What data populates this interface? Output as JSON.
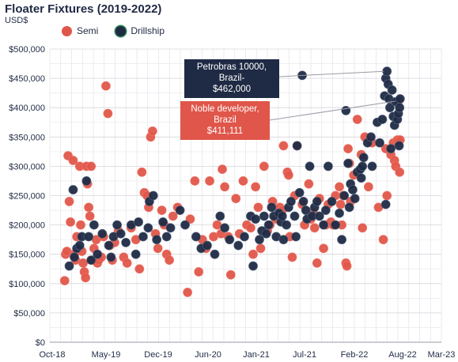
{
  "chart_data": {
    "type": "scatter",
    "title": "Floater Fixtures (2019-2022)",
    "subtitle": "USD$",
    "xlabel": "",
    "ylabel": "",
    "x_ticks": [
      "Oct-18",
      "May-19",
      "Dec-19",
      "Jun-20",
      "Jan-21",
      "Jul-21",
      "Feb-22",
      "Aug-22",
      "Mar-23"
    ],
    "x_range": [
      "2018-10",
      "2023-03"
    ],
    "y_ticks": [
      "$0",
      "$50,000",
      "$100,000",
      "$150,000",
      "$200,000",
      "$250,000",
      "$300,000",
      "$350,000",
      "$400,000",
      "$450,000",
      "$500,000"
    ],
    "ylim": [
      0,
      500000
    ],
    "grid": true,
    "legend_position": "top-left",
    "series": [
      {
        "name": "Semi",
        "color": "#e0564a",
        "points": [
          [
            "2018-12-01",
            105000
          ],
          [
            "2018-12-05",
            150000
          ],
          [
            "2018-12-10",
            155000
          ],
          [
            "2018-12-15",
            318000
          ],
          [
            "2018-12-20",
            240000
          ],
          [
            "2018-12-25",
            205000
          ],
          [
            "2019-01-05",
            310000
          ],
          [
            "2019-01-10",
            150000
          ],
          [
            "2019-01-15",
            140000
          ],
          [
            "2019-01-20",
            180000
          ],
          [
            "2019-02-01",
            300000
          ],
          [
            "2019-02-05",
            200000
          ],
          [
            "2019-02-10",
            155000
          ],
          [
            "2019-02-15",
            135000
          ],
          [
            "2019-02-20",
            120000
          ],
          [
            "2019-02-25",
            110000
          ],
          [
            "2019-03-01",
            300000
          ],
          [
            "2019-03-05",
            270000
          ],
          [
            "2019-03-10",
            230000
          ],
          [
            "2019-03-15",
            215000
          ],
          [
            "2019-03-20",
            300000
          ],
          [
            "2019-03-25",
            140000
          ],
          [
            "2019-04-01",
            160000
          ],
          [
            "2019-04-10",
            175000
          ],
          [
            "2019-04-15",
            135000
          ],
          [
            "2019-04-20",
            140000
          ],
          [
            "2019-05-01",
            145000
          ],
          [
            "2019-05-10",
            180000
          ],
          [
            "2019-05-20",
            437000
          ],
          [
            "2019-05-28",
            390000
          ],
          [
            "2019-06-05",
            165000
          ],
          [
            "2019-06-15",
            140000
          ],
          [
            "2019-06-25",
            170000
          ],
          [
            "2019-07-10",
            190000
          ],
          [
            "2019-08-01",
            145000
          ],
          [
            "2019-08-15",
            135000
          ],
          [
            "2019-09-01",
            195000
          ],
          [
            "2019-09-20",
            175000
          ],
          [
            "2019-10-05",
            125000
          ],
          [
            "2019-10-15",
            290000
          ],
          [
            "2019-10-25",
            255000
          ],
          [
            "2019-11-05",
            250000
          ],
          [
            "2019-11-12",
            230000
          ],
          [
            "2019-11-20",
            350000
          ],
          [
            "2019-11-28",
            360000
          ],
          [
            "2019-12-10",
            185000
          ],
          [
            "2019-12-20",
            160000
          ],
          [
            "2020-01-05",
            225000
          ],
          [
            "2020-01-15",
            200000
          ],
          [
            "2020-01-25",
            150000
          ],
          [
            "2020-02-05",
            140000
          ],
          [
            "2020-02-20",
            215000
          ],
          [
            "2020-03-10",
            230000
          ],
          [
            "2020-04-20",
            85000
          ],
          [
            "2020-05-01",
            210000
          ],
          [
            "2020-05-20",
            275000
          ],
          [
            "2020-06-05",
            120000
          ],
          [
            "2020-06-20",
            175000
          ],
          [
            "2020-07-05",
            160000
          ],
          [
            "2020-07-20",
            275000
          ],
          [
            "2020-08-05",
            180000
          ],
          [
            "2020-08-20",
            200000
          ],
          [
            "2020-09-05",
            185000
          ],
          [
            "2020-09-10",
            295000
          ],
          [
            "2020-09-20",
            265000
          ],
          [
            "2020-10-05",
            180000
          ],
          [
            "2020-10-15",
            115000
          ],
          [
            "2020-11-05",
            245000
          ],
          [
            "2020-11-20",
            185000
          ],
          [
            "2020-12-05",
            275000
          ],
          [
            "2020-12-20",
            200000
          ],
          [
            "2021-01-05",
            195000
          ],
          [
            "2021-01-15",
            150000
          ],
          [
            "2021-01-25",
            265000
          ],
          [
            "2021-02-05",
            230000
          ],
          [
            "2021-02-15",
            160000
          ],
          [
            "2021-03-01",
            300000
          ],
          [
            "2021-03-15",
            190000
          ],
          [
            "2021-03-25",
            200000
          ],
          [
            "2021-04-05",
            240000
          ],
          [
            "2021-04-20",
            210000
          ],
          [
            "2021-05-05",
            230000
          ],
          [
            "2021-05-15",
            225000
          ],
          [
            "2021-05-20",
            335000
          ],
          [
            "2021-06-05",
            290000
          ],
          [
            "2021-06-10",
            285000
          ],
          [
            "2021-06-15",
            180000
          ],
          [
            "2021-06-25",
            145000
          ],
          [
            "2021-07-05",
            250000
          ],
          [
            "2021-07-15",
            335000
          ],
          [
            "2021-08-05",
            235000
          ],
          [
            "2021-08-15",
            200000
          ],
          [
            "2021-09-01",
            270000
          ],
          [
            "2021-09-10",
            210000
          ],
          [
            "2021-09-20",
            220000
          ],
          [
            "2021-09-25",
            195000
          ],
          [
            "2021-10-05",
            135000
          ],
          [
            "2021-10-15",
            245000
          ],
          [
            "2021-11-01",
            160000
          ],
          [
            "2021-11-10",
            200000
          ],
          [
            "2021-11-20",
            235000
          ],
          [
            "2021-12-01",
            205000
          ],
          [
            "2021-12-10",
            200000
          ],
          [
            "2021-12-20",
            250000
          ],
          [
            "2022-01-05",
            265000
          ],
          [
            "2022-01-10",
            235000
          ],
          [
            "2022-01-15",
            200000
          ],
          [
            "2022-01-20",
            250000
          ],
          [
            "2022-02-01",
            135000
          ],
          [
            "2022-02-05",
            130000
          ],
          [
            "2022-02-10",
            330000
          ],
          [
            "2022-02-15",
            305000
          ],
          [
            "2022-02-20",
            240000
          ],
          [
            "2022-03-05",
            285000
          ],
          [
            "2022-03-20",
            380000
          ],
          [
            "2022-04-05",
            320000
          ],
          [
            "2022-04-10",
            195000
          ],
          [
            "2022-04-20",
            350000
          ],
          [
            "2022-05-05",
            265000
          ],
          [
            "2022-05-20",
            340000
          ],
          [
            "2022-06-15",
            230000
          ],
          [
            "2022-07-05",
            175000
          ],
          [
            "2022-07-15",
            330000
          ],
          [
            "2022-07-20",
            250000
          ],
          [
            "2022-08-05",
            320000
          ],
          [
            "2022-08-15",
            340000
          ],
          [
            "2022-08-20",
            310000
          ],
          [
            "2022-08-25",
            300000
          ],
          [
            "2022-09-01",
            345000
          ],
          [
            "2022-09-05",
            411111
          ],
          [
            "2022-09-10",
            290000
          ],
          [
            "2022-09-12",
            345000
          ]
        ]
      },
      {
        "name": "Drillship",
        "color": "#1f2a44",
        "points": [
          [
            "2018-12-20",
            130000
          ],
          [
            "2019-01-05",
            260000
          ],
          [
            "2019-01-10",
            145000
          ],
          [
            "2019-01-20",
            160000
          ],
          [
            "2019-02-01",
            165000
          ],
          [
            "2019-02-10",
            180000
          ],
          [
            "2019-03-01",
            275000
          ],
          [
            "2019-03-10",
            180000
          ],
          [
            "2019-03-20",
            140000
          ],
          [
            "2019-04-01",
            200000
          ],
          [
            "2019-04-15",
            150000
          ],
          [
            "2019-05-05",
            185000
          ],
          [
            "2019-06-01",
            165000
          ],
          [
            "2019-06-10",
            145000
          ],
          [
            "2019-06-20",
            180000
          ],
          [
            "2019-07-05",
            200000
          ],
          [
            "2019-07-20",
            185000
          ],
          [
            "2019-08-10",
            170000
          ],
          [
            "2019-09-01",
            200000
          ],
          [
            "2019-09-20",
            150000
          ],
          [
            "2019-10-01",
            205000
          ],
          [
            "2019-10-20",
            180000
          ],
          [
            "2019-11-10",
            195000
          ],
          [
            "2019-11-15",
            240000
          ],
          [
            "2019-12-01",
            250000
          ],
          [
            "2019-12-15",
            175000
          ],
          [
            "2020-01-10",
            205000
          ],
          [
            "2020-01-25",
            180000
          ],
          [
            "2020-02-10",
            195000
          ],
          [
            "2020-03-20",
            225000
          ],
          [
            "2020-04-10",
            200000
          ],
          [
            "2020-05-25",
            180000
          ],
          [
            "2020-06-15",
            160000
          ],
          [
            "2020-07-10",
            165000
          ],
          [
            "2020-08-10",
            150000
          ],
          [
            "2020-09-01",
            215000
          ],
          [
            "2020-09-20",
            195000
          ],
          [
            "2020-10-10",
            175000
          ],
          [
            "2020-11-15",
            165000
          ],
          [
            "2020-12-10",
            180000
          ],
          [
            "2021-01-05",
            215000
          ],
          [
            "2021-01-15",
            130000
          ],
          [
            "2021-01-25",
            210000
          ],
          [
            "2021-02-10",
            175000
          ],
          [
            "2021-02-20",
            190000
          ],
          [
            "2021-03-01",
            215000
          ],
          [
            "2021-03-10",
            185000
          ],
          [
            "2021-03-20",
            200000
          ],
          [
            "2021-04-01",
            230000
          ],
          [
            "2021-04-10",
            215000
          ],
          [
            "2021-04-20",
            180000
          ],
          [
            "2021-05-01",
            220000
          ],
          [
            "2021-05-10",
            205000
          ],
          [
            "2021-05-15",
            215000
          ],
          [
            "2021-05-20",
            175000
          ],
          [
            "2021-06-01",
            200000
          ],
          [
            "2021-06-10",
            230000
          ],
          [
            "2021-06-20",
            240000
          ],
          [
            "2021-07-05",
            215000
          ],
          [
            "2021-07-10",
            180000
          ],
          [
            "2021-07-15",
            335000
          ],
          [
            "2021-07-25",
            255000
          ],
          [
            "2021-08-10",
            240000
          ],
          [
            "2021-08-20",
            225000
          ],
          [
            "2021-08-25",
            210000
          ],
          [
            "2021-09-05",
            300000
          ],
          [
            "2021-09-15",
            215000
          ],
          [
            "2021-09-25",
            230000
          ],
          [
            "2021-10-05",
            240000
          ],
          [
            "2021-10-15",
            215000
          ],
          [
            "2021-11-01",
            200000
          ],
          [
            "2021-11-10",
            225000
          ],
          [
            "2021-11-20",
            300000
          ],
          [
            "2021-12-05",
            240000
          ],
          [
            "2021-12-20",
            200000
          ],
          [
            "2022-01-05",
            220000
          ],
          [
            "2022-01-15",
            175000
          ],
          [
            "2022-01-25",
            250000
          ],
          [
            "2022-02-01",
            395000
          ],
          [
            "2022-02-10",
            305000
          ],
          [
            "2022-02-15",
            230000
          ],
          [
            "2022-02-20",
            270000
          ],
          [
            "2022-03-01",
            260000
          ],
          [
            "2022-03-10",
            245000
          ],
          [
            "2022-03-20",
            290000
          ],
          [
            "2022-04-01",
            295000
          ],
          [
            "2022-04-05",
            280000
          ],
          [
            "2022-04-15",
            315000
          ],
          [
            "2022-05-01",
            340000
          ],
          [
            "2022-05-15",
            350000
          ],
          [
            "2022-05-20",
            300000
          ],
          [
            "2022-06-10",
            375000
          ],
          [
            "2022-06-20",
            340000
          ],
          [
            "2022-07-01",
            380000
          ],
          [
            "2022-07-10",
            420000
          ],
          [
            "2022-07-15",
            450000
          ],
          [
            "2022-07-20",
            462000
          ],
          [
            "2022-07-25",
            440000
          ],
          [
            "2022-07-28",
            415000
          ],
          [
            "2022-08-01",
            400000
          ],
          [
            "2022-08-05",
            330000
          ],
          [
            "2022-08-10",
            430000
          ],
          [
            "2022-08-15",
            385000
          ],
          [
            "2022-08-20",
            370000
          ],
          [
            "2022-08-25",
            410000
          ],
          [
            "2022-09-01",
            380000
          ],
          [
            "2022-09-05",
            390000
          ],
          [
            "2022-09-08",
            335000
          ],
          [
            "2022-09-10",
            400000
          ],
          [
            "2022-09-12",
            415000
          ],
          [
            "2022-07-15",
            235000
          ],
          [
            "2022-04-10",
            300000
          ],
          [
            "2021-08-05",
            455000
          ]
        ]
      }
    ],
    "annotations": [
      {
        "text_lines": [
          "Petrobras 10000,",
          "Brazil-",
          "$462,000"
        ],
        "target": [
          "2022-07-20",
          462000
        ],
        "box_color": "#1f2a44"
      },
      {
        "text_lines": [
          "Noble developer,",
          "Brazil",
          "$411,111"
        ],
        "target": [
          "2022-09-05",
          411111
        ],
        "box_color": "#e0564a"
      }
    ]
  }
}
